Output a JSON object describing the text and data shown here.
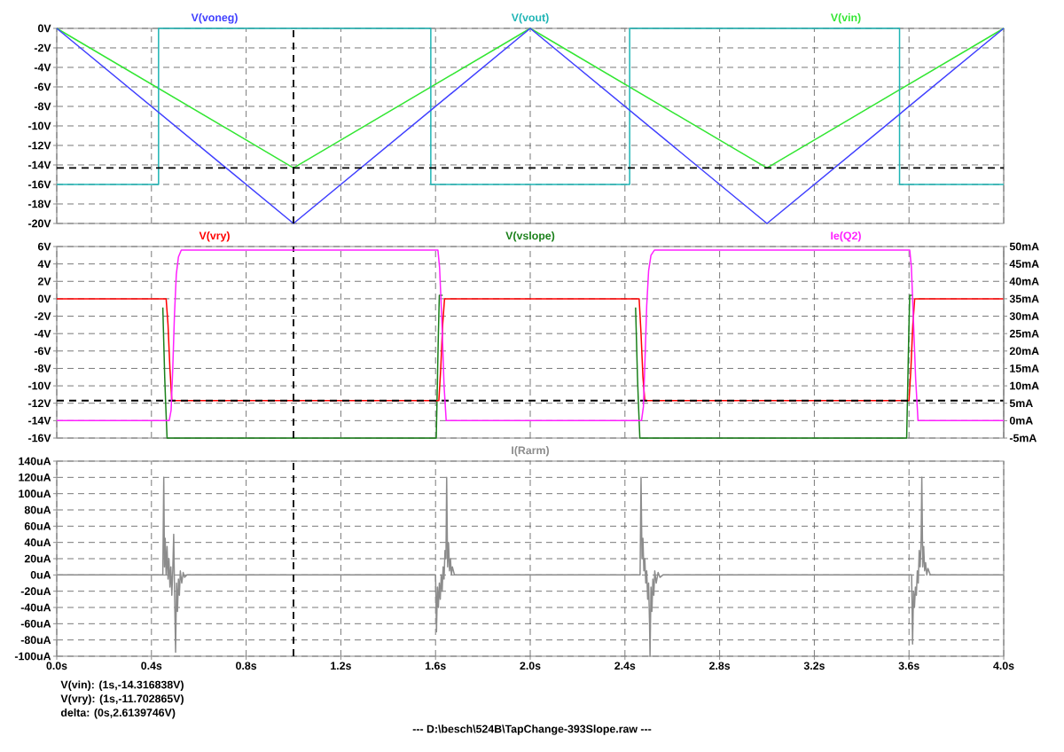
{
  "chart_data": [
    {
      "type": "line",
      "grid": true,
      "tick_labels": "y",
      "xlim": [
        0,
        4
      ],
      "xticks": [
        0,
        0.4,
        0.8,
        1.2,
        1.6,
        2,
        2.4,
        2.8,
        3.2,
        3.6,
        4
      ],
      "ylim": [
        -20,
        0
      ],
      "yticks": [
        {
          "value": 0,
          "label": "0V"
        },
        {
          "value": -2,
          "label": "-2V"
        },
        {
          "value": -4,
          "label": "-4V"
        },
        {
          "value": -6,
          "label": "-6V"
        },
        {
          "value": -8,
          "label": "-8V"
        },
        {
          "value": -10,
          "label": "-10V"
        },
        {
          "value": -12,
          "label": "-12V"
        },
        {
          "value": -14,
          "label": "-14V"
        },
        {
          "value": -16,
          "label": "-16V"
        },
        {
          "value": -18,
          "label": "-18V"
        },
        {
          "value": -20,
          "label": "-20V"
        }
      ],
      "series": [
        {
          "name": "V(voneg)",
          "color": "#4040ff",
          "x": [
            0,
            1,
            2,
            3,
            4
          ],
          "values": [
            0,
            -20,
            0,
            -20,
            0
          ]
        },
        {
          "name": "V(vout)",
          "color": "#1fb5b5",
          "x": [
            0,
            0.43,
            0.43,
            1.58,
            1.58,
            2.42,
            2.42,
            3.56,
            3.56,
            4
          ],
          "values": [
            -16,
            -16,
            0,
            0,
            -16,
            -16,
            0,
            0,
            -16,
            -16
          ]
        },
        {
          "name": "V(vin)",
          "color": "#33e633",
          "x": [
            0,
            1,
            2,
            3,
            4
          ],
          "values": [
            0,
            -14.3,
            0,
            -14.3,
            0
          ]
        }
      ],
      "ref_lines": [
        {
          "axis": "x",
          "value": 1,
          "color": "#000000",
          "line_style": "dashed"
        },
        {
          "axis": "y",
          "value": -14.3,
          "color": "#000000",
          "line_style": "dashed"
        }
      ]
    },
    {
      "type": "line",
      "grid": true,
      "tick_labels": "y",
      "xlim": [
        0,
        4
      ],
      "xticks": [
        0,
        0.4,
        0.8,
        1.2,
        1.6,
        2,
        2.4,
        2.8,
        3.2,
        3.6,
        4
      ],
      "ylim": [
        -16,
        6
      ],
      "yticks": [
        {
          "value": 6,
          "label": "6V"
        },
        {
          "value": 4,
          "label": "4V"
        },
        {
          "value": 2,
          "label": "2V"
        },
        {
          "value": 0,
          "label": "0V"
        },
        {
          "value": -2,
          "label": "-2V"
        },
        {
          "value": -4,
          "label": "-4V"
        },
        {
          "value": -6,
          "label": "-6V"
        },
        {
          "value": -8,
          "label": "-8V"
        },
        {
          "value": -10,
          "label": "-10V"
        },
        {
          "value": -12,
          "label": "-12V"
        },
        {
          "value": -14,
          "label": "-14V"
        },
        {
          "value": -16,
          "label": "-16V"
        }
      ],
      "y2lim": [
        -5,
        50
      ],
      "y2ticks": [
        {
          "value": 50,
          "label": "50mA"
        },
        {
          "value": 45,
          "label": "45mA"
        },
        {
          "value": 40,
          "label": "40mA"
        },
        {
          "value": 35,
          "label": "35mA"
        },
        {
          "value": 30,
          "label": "30mA"
        },
        {
          "value": 25,
          "label": "25mA"
        },
        {
          "value": 20,
          "label": "20mA"
        },
        {
          "value": 15,
          "label": "15mA"
        },
        {
          "value": 10,
          "label": "10mA"
        },
        {
          "value": 5,
          "label": "5mA"
        },
        {
          "value": 0,
          "label": "0mA"
        },
        {
          "value": -5,
          "label": "-5mA"
        }
      ],
      "series": [
        {
          "name": "V(vry)",
          "color": "#ff0000",
          "x": [
            0,
            0.462,
            0.47,
            0.478,
            0.486,
            1.614,
            1.622,
            1.63,
            1.638,
            2.46,
            2.468,
            2.476,
            2.484,
            3.6,
            3.608,
            3.616,
            3.624,
            4
          ],
          "values": [
            0,
            0,
            -3,
            -8,
            -11.7,
            -11.7,
            -8,
            -3,
            0,
            0,
            -4,
            -9,
            -11.7,
            -11.7,
            -8,
            -3,
            0,
            0
          ]
        },
        {
          "name": "V(vslope)",
          "color": "#1a801a",
          "x": [
            0.448,
            0.452,
            0.456,
            0.46,
            0.466,
            1.603,
            1.606,
            1.609,
            1.612,
            1.616,
            1.63,
            2,
            2.445,
            2.449,
            2.453,
            2.457,
            2.463,
            3.59,
            3.593,
            3.596,
            3.599,
            3.603,
            3.617
          ],
          "values": [
            -1,
            -5,
            -9,
            -12,
            -16,
            -16,
            -12,
            -8,
            -4,
            0.4,
            0.4,
            null,
            -1,
            -5,
            -9,
            -12,
            -16,
            -16,
            -12,
            -8,
            -4,
            0.4,
            0.4
          ]
        },
        {
          "name": "Ie(Q2)",
          "color": "#ff20ff",
          "axis": "y2",
          "x": [
            0,
            0.475,
            0.483,
            0.49,
            0.497,
            0.505,
            0.514,
            0.526,
            1.61,
            1.617,
            1.626,
            1.636,
            1.645,
            2.47,
            2.478,
            2.485,
            2.492,
            2.5,
            2.51,
            2.525,
            3.603,
            3.61,
            3.618,
            3.628,
            3.638,
            4
          ],
          "values": [
            0,
            0,
            3,
            15,
            30,
            42,
            47,
            49,
            49,
            44,
            30,
            10,
            0,
            0,
            4,
            18,
            33,
            43,
            47.5,
            49,
            49,
            44,
            30,
            12,
            0,
            0
          ]
        }
      ],
      "ref_lines": [
        {
          "axis": "x",
          "value": 1,
          "color": "#000000",
          "line_style": "dashed"
        },
        {
          "axis": "y",
          "value": -11.7,
          "color": "#000000",
          "line_style": "dashed"
        }
      ]
    },
    {
      "type": "line",
      "grid": true,
      "title": "--- D:\\besch\\524B\\TapChange-393Slope.raw ---",
      "xlim": [
        0,
        4
      ],
      "xticks": [
        {
          "value": 0,
          "label": "0.0s"
        },
        {
          "value": 0.4,
          "label": "0.4s"
        },
        {
          "value": 0.8,
          "label": "0.8s"
        },
        {
          "value": 1.2,
          "label": "1.2s"
        },
        {
          "value": 1.6,
          "label": "1.6s"
        },
        {
          "value": 2,
          "label": "2.0s"
        },
        {
          "value": 2.4,
          "label": "2.4s"
        },
        {
          "value": 2.8,
          "label": "2.8s"
        },
        {
          "value": 3.2,
          "label": "3.2s"
        },
        {
          "value": 3.6,
          "label": "3.6s"
        },
        {
          "value": 4,
          "label": "4.0s"
        }
      ],
      "ylim": [
        -100,
        140
      ],
      "yticks": [
        {
          "value": 140,
          "label": "140uA"
        },
        {
          "value": 120,
          "label": "120uA"
        },
        {
          "value": 100,
          "label": "100uA"
        },
        {
          "value": 80,
          "label": "80uA"
        },
        {
          "value": 60,
          "label": "60uA"
        },
        {
          "value": 40,
          "label": "40uA"
        },
        {
          "value": 20,
          "label": "20uA"
        },
        {
          "value": 0,
          "label": "0uA"
        },
        {
          "value": -20,
          "label": "-20uA"
        },
        {
          "value": -40,
          "label": "-40uA"
        },
        {
          "value": -60,
          "label": "-60uA"
        },
        {
          "value": -80,
          "label": "-80uA"
        },
        {
          "value": -100,
          "label": "-100uA"
        }
      ],
      "series": [
        {
          "name": "I(Rarm)",
          "color": "#8c8c8c",
          "x": [
            0,
            0.448,
            0.452,
            0.455,
            0.458,
            0.462,
            0.466,
            0.47,
            0.474,
            0.478,
            0.482,
            0.486,
            0.49,
            0.494,
            0.498,
            0.502,
            0.506,
            0.51,
            0.514,
            0.518,
            0.522,
            0.528,
            0.534,
            0.54,
            0.55,
            1.6,
            1.604,
            1.608,
            1.612,
            1.616,
            1.62,
            1.624,
            1.628,
            1.632,
            1.636,
            1.64,
            1.644,
            1.647,
            1.651,
            1.655,
            1.659,
            1.663,
            1.667,
            1.671,
            1.68,
            2.464,
            2.468,
            2.472,
            2.476,
            2.48,
            2.484,
            2.488,
            2.492,
            2.496,
            2.5,
            2.504,
            2.506,
            2.51,
            2.514,
            2.518,
            2.522,
            2.526,
            2.532,
            2.54,
            2.548,
            2.56,
            3.611,
            3.615,
            3.619,
            3.623,
            3.627,
            3.631,
            3.635,
            3.639,
            3.643,
            3.647,
            3.651,
            3.654,
            3.658,
            3.662,
            3.666,
            3.67,
            3.675,
            3.68,
            3.69,
            4
          ],
          "values": [
            0,
            0,
            120,
            10,
            45,
            0,
            35,
            -5,
            20,
            -15,
            10,
            -25,
            5,
            50,
            -30,
            -95,
            -10,
            -45,
            -5,
            -25,
            5,
            -10,
            3,
            -3,
            0,
            0,
            -70,
            -15,
            -40,
            -10,
            -30,
            0,
            -20,
            10,
            -5,
            30,
            20,
            120,
            10,
            40,
            5,
            20,
            0,
            10,
            0,
            0,
            120,
            20,
            45,
            5,
            20,
            -10,
            5,
            -30,
            -10,
            -60,
            -100,
            -15,
            -45,
            -5,
            -25,
            5,
            -10,
            3,
            -3,
            0,
            0,
            -85,
            -20,
            -40,
            -15,
            -25,
            5,
            -10,
            30,
            10,
            40,
            120,
            10,
            35,
            5,
            15,
            0,
            8,
            0,
            0
          ]
        }
      ],
      "ref_lines": [
        {
          "axis": "x",
          "value": 1,
          "color": "#000000",
          "line_style": "dashed"
        }
      ],
      "annotations": [
        "V(vin): (1s,-14.316838V)",
        "V(vry): (1s,-11.702865V)",
        "delta: (0s,2.6139746V)"
      ]
    }
  ]
}
